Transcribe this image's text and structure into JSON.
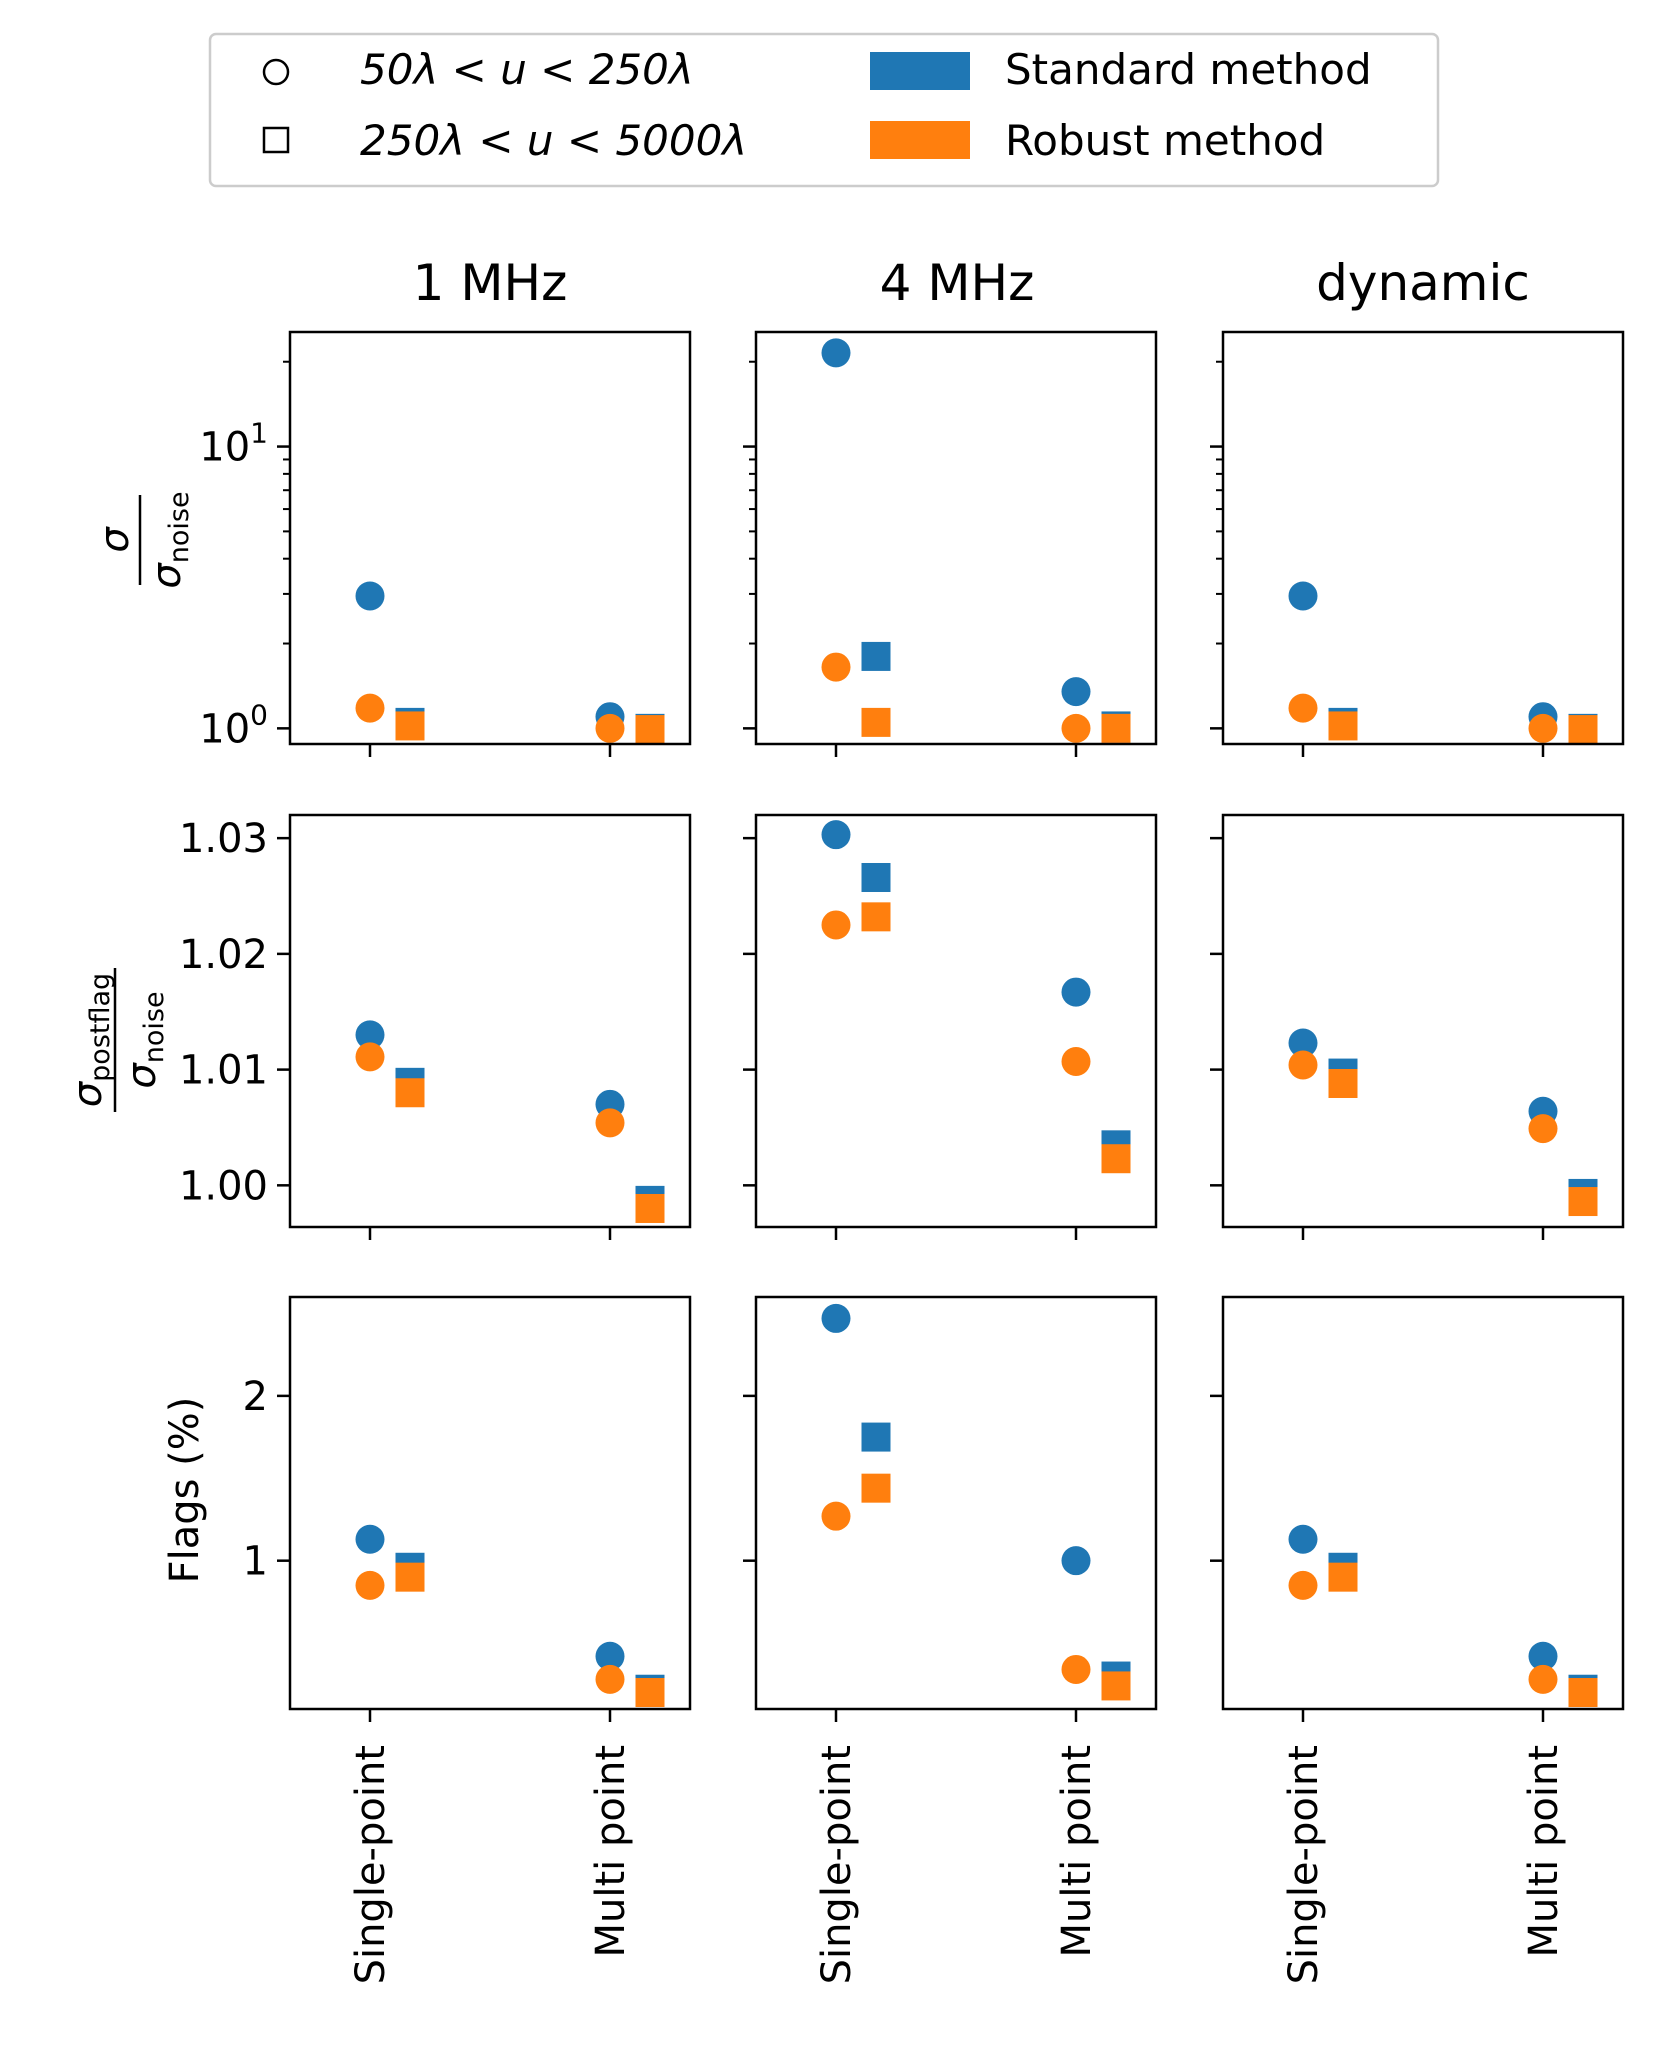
{
  "figure": {
    "legend": {
      "entries": [
        {
          "key": "marker-circle",
          "label": "50λ < u < 250λ"
        },
        {
          "key": "marker-square",
          "label": "250λ < u < 5000λ"
        },
        {
          "key": "color-standard",
          "label": "Standard method"
        },
        {
          "key": "color-robust",
          "label": "Robust method"
        }
      ]
    },
    "colors": {
      "standard": "#1f77b4",
      "robust": "#ff7f0e"
    },
    "columns": [
      "1 MHz",
      "4 MHz",
      "dynamic"
    ],
    "row_labels": [
      "σ / σnoise",
      "σpostflag / σnoise",
      "Flags (%)"
    ],
    "x_categories": [
      "Single-point",
      "Multi point"
    ]
  },
  "chart_data": [
    {
      "type": "scatter",
      "row": 0,
      "ylabel_num": "σ",
      "ylabel_den": "σnoise",
      "yscale": "log",
      "ylim": [
        0.88,
        25.5
      ],
      "yticks": [
        {
          "value": 1,
          "base": "10",
          "exp": "0"
        },
        {
          "value": 10,
          "base": "10",
          "exp": "1"
        }
      ],
      "panels": [
        {
          "title": "1 MHz",
          "series": {
            "standard_circle": [
              2.95,
              1.1
            ],
            "standard_square": [
              1.05,
              1.0
            ],
            "robust_circle": [
              1.18,
              1.0
            ],
            "robust_square": [
              1.02,
              0.99
            ]
          }
        },
        {
          "title": "4 MHz",
          "series": {
            "standard_circle": [
              21.5,
              1.35
            ],
            "standard_square": [
              1.8,
              1.02
            ],
            "robust_circle": [
              1.65,
              1.0
            ],
            "robust_square": [
              1.05,
              1.0
            ]
          }
        },
        {
          "title": "dynamic",
          "series": {
            "standard_circle": [
              2.95,
              1.1
            ],
            "standard_square": [
              1.05,
              1.0
            ],
            "robust_circle": [
              1.18,
              1.0
            ],
            "robust_square": [
              1.02,
              0.99
            ]
          }
        }
      ]
    },
    {
      "type": "scatter",
      "row": 1,
      "ylabel_num": "σpostflag",
      "ylabel_den": "σnoise",
      "yscale": "linear",
      "ylim": [
        0.9964,
        1.032
      ],
      "yticks": [
        {
          "value": 1.0,
          "label": "1.00"
        },
        {
          "value": 1.01,
          "label": "1.01"
        },
        {
          "value": 1.02,
          "label": "1.02"
        },
        {
          "value": 1.03,
          "label": "1.03"
        }
      ],
      "panels": [
        {
          "title": "1 MHz",
          "series": {
            "standard_circle": [
              1.013,
              1.007
            ],
            "standard_square": [
              1.0089,
              0.9987
            ],
            "robust_circle": [
              1.0111,
              1.0054
            ],
            "robust_square": [
              1.008,
              0.998
            ]
          }
        },
        {
          "title": "4 MHz",
          "series": {
            "standard_circle": [
              1.0303,
              1.0167
            ],
            "standard_square": [
              1.0266,
              1.0035
            ],
            "robust_circle": [
              1.0225,
              1.0107
            ],
            "robust_square": [
              1.0232,
              1.0023
            ]
          }
        },
        {
          "title": "dynamic",
          "series": {
            "standard_circle": [
              1.0123,
              1.0064
            ],
            "standard_square": [
              1.0097,
              0.9993
            ],
            "robust_circle": [
              1.0104,
              1.0049
            ],
            "robust_square": [
              1.0088,
              0.9986
            ]
          }
        }
      ]
    },
    {
      "type": "scatter",
      "row": 2,
      "ylabel": "Flags (%)",
      "yscale": "linear",
      "ylim": [
        0.1,
        2.6
      ],
      "yticks": [
        {
          "value": 1,
          "label": "1"
        },
        {
          "value": 2,
          "label": "2"
        }
      ],
      "panels": [
        {
          "title": "1 MHz",
          "series": {
            "standard_circle": [
              1.13,
              0.42
            ],
            "standard_square": [
              0.96,
              0.22
            ],
            "robust_circle": [
              0.85,
              0.28
            ],
            "robust_square": [
              0.9,
              0.2
            ]
          }
        },
        {
          "title": "4 MHz",
          "series": {
            "standard_circle": [
              2.47,
              1.0
            ],
            "standard_square": [
              1.75,
              0.3
            ],
            "robust_circle": [
              1.27,
              0.34
            ],
            "robust_square": [
              1.44,
              0.24
            ]
          }
        },
        {
          "title": "dynamic",
          "series": {
            "standard_circle": [
              1.13,
              0.42
            ],
            "standard_square": [
              0.96,
              0.22
            ],
            "robust_circle": [
              0.85,
              0.28
            ],
            "robust_square": [
              0.9,
              0.2
            ]
          }
        }
      ]
    }
  ]
}
